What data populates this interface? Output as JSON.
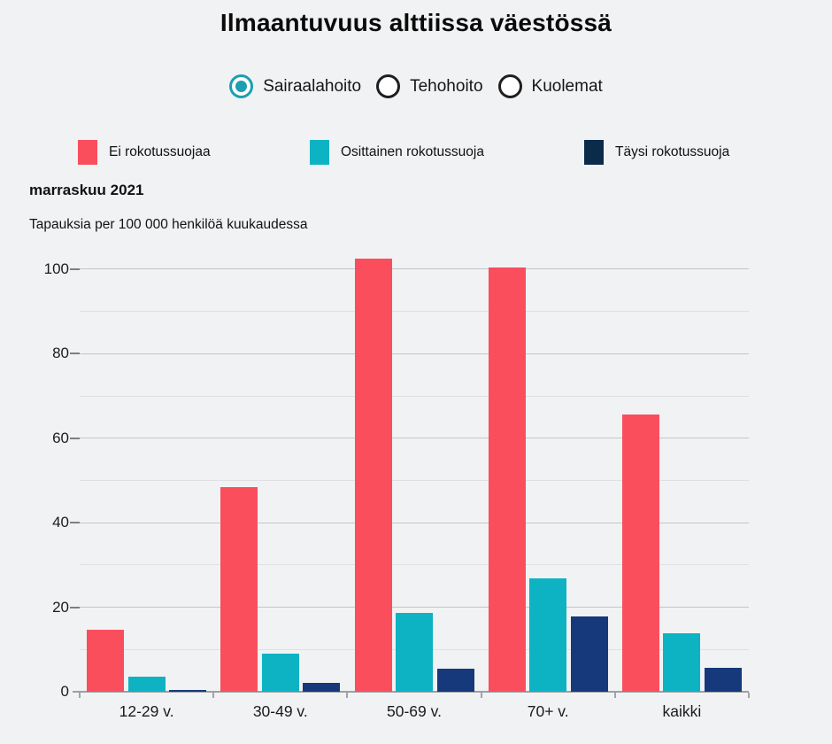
{
  "title": "Ilmaantuvuus alttiissa väestössä",
  "radio_group": {
    "selected_color": "#1b9fb1",
    "options": [
      {
        "label": "Sairaalahoito",
        "selected": true
      },
      {
        "label": "Tehohoito",
        "selected": false
      },
      {
        "label": "Kuolemat",
        "selected": false
      }
    ]
  },
  "legend": [
    {
      "label": "Ei rokotussuojaa",
      "color": "#fa4e5d"
    },
    {
      "label": "Osittainen rokotussuoja",
      "color": "#0db3c2"
    },
    {
      "label": "Täysi rokotussuoja",
      "color": "#0b2b4b"
    }
  ],
  "subtitle": "marraskuu 2021",
  "axis_note": "Tapauksia per 100 000 henkilöä kuukaudessa",
  "colors": {
    "background": "#f1f2f4",
    "bar_red": "#fa4e5d",
    "bar_teal": "#0db3c2",
    "bar_navy": "#15397b",
    "legend_navy": "#0b2b4b"
  },
  "chart_data": {
    "type": "bar",
    "title": "Ilmaantuvuus alttiissa väestössä",
    "categories": [
      "12-29 v.",
      "30-49 v.",
      "50-69 v.",
      "70+ v.",
      "kaikki"
    ],
    "series": [
      {
        "name": "Ei rokotussuojaa",
        "color": "#fa4e5d",
        "values": [
          14.7,
          48.4,
          102.4,
          100.3,
          65.6
        ]
      },
      {
        "name": "Osittainen rokotussuoja",
        "color": "#0db3c2",
        "values": [
          3.6,
          9.1,
          18.7,
          26.8,
          13.9
        ]
      },
      {
        "name": "Täysi rokotussuoja",
        "color": "#15397b",
        "values": [
          0.5,
          2.1,
          5.4,
          17.9,
          5.6
        ]
      }
    ],
    "xlabel": "",
    "ylabel": "Tapauksia per 100 000 henkilöä kuukaudessa",
    "ylim": [
      0,
      105
    ],
    "yticks": [
      0,
      20,
      40,
      60,
      80,
      100
    ],
    "grid_step": 10,
    "grid": true,
    "legend_position": "top"
  }
}
